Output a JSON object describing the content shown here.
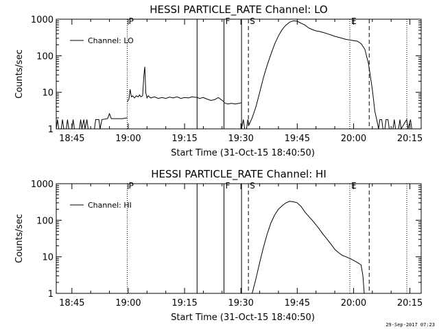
{
  "footer": {
    "timestamp": "29-Sep-2017 07:23"
  },
  "chart_data": [
    {
      "type": "line",
      "title": "HESSI PARTICLE_RATE Channel: LO",
      "xlabel": "Start Time (31-Oct-15 18:40:50)",
      "ylabel": "Counts/sec",
      "y_scale": "log",
      "ylim": [
        1,
        1000
      ],
      "y_ticks": [
        1,
        10,
        100,
        1000
      ],
      "y_tick_labels": [
        "1",
        "10",
        "100",
        "1000"
      ],
      "xlim": [
        "18:40:50",
        "20:18:00"
      ],
      "x_ticks": [
        "18:45",
        "19:00",
        "19:15",
        "19:30",
        "19:45",
        "20:00",
        "20:15"
      ],
      "legend": {
        "label": "Channel: LO",
        "position": "top-left"
      },
      "markers": [
        {
          "time": "18:59:45",
          "style": "dotted",
          "label": "P"
        },
        {
          "time": "19:18:20",
          "style": "solid",
          "label": ""
        },
        {
          "time": "19:25:30",
          "style": "solid",
          "label": "F"
        },
        {
          "time": "19:30:10",
          "style": "solid",
          "label": ""
        },
        {
          "time": "19:32:00",
          "style": "dashed",
          "label": "S"
        },
        {
          "time": "19:59:00",
          "style": "dotted",
          "label": "E"
        },
        {
          "time": "20:04:10",
          "style": "dashed",
          "label": ""
        },
        {
          "time": "20:14:10",
          "style": "dotted",
          "label": ""
        }
      ],
      "series": [
        {
          "name": "Channel: LO",
          "segments": [
            {
              "points": [
                [
                  "18:40:50",
                  1
                ],
                [
                  "18:41:10",
                  1.8
                ],
                [
                  "18:41:30",
                  1
                ],
                [
                  "18:42:10",
                  1
                ],
                [
                  "18:42:30",
                  1.8
                ],
                [
                  "18:42:50",
                  1
                ],
                [
                  "18:43:30",
                  1
                ],
                [
                  "18:43:50",
                  1.8
                ],
                [
                  "18:44:10",
                  1
                ],
                [
                  "18:45:00",
                  1
                ],
                [
                  "18:45:20",
                  1.8
                ],
                [
                  "18:45:40",
                  1
                ],
                [
                  "18:47:00",
                  1
                ],
                [
                  "18:47:20",
                  1.8
                ],
                [
                  "18:47:40",
                  1
                ],
                [
                  "18:48:10",
                  1.8
                ],
                [
                  "18:48:30",
                  1
                ],
                [
                  "18:49:00",
                  1.8
                ],
                [
                  "18:49:20",
                  1
                ],
                [
                  "18:51:00",
                  1
                ],
                [
                  "18:51:20",
                  1.8
                ],
                [
                  "18:52:10",
                  1.8
                ],
                [
                  "18:52:30",
                  1
                ],
                [
                  "18:53:00",
                  1.8
                ],
                [
                  "18:54:30",
                  1.9
                ],
                [
                  "18:55:00",
                  2.6
                ],
                [
                  "18:55:30",
                  1.9
                ],
                [
                  "18:58:30",
                  1.9
                ],
                [
                  "18:59:45",
                  2.0
                ]
              ]
            },
            {
              "points": [
                [
                  "18:59:45",
                  5.5
                ],
                [
                  "19:00:10",
                  6.5
                ],
                [
                  "19:00:30",
                  12
                ],
                [
                  "19:00:50",
                  7.5
                ],
                [
                  "19:01:10",
                  8
                ],
                [
                  "19:01:40",
                  7
                ],
                [
                  "19:02:10",
                  8
                ],
                [
                  "19:02:40",
                  7.5
                ],
                [
                  "19:03:00",
                  8.5
                ],
                [
                  "19:03:20",
                  7.5
                ],
                [
                  "19:03:50",
                  8
                ],
                [
                  "19:04:10",
                  30
                ],
                [
                  "19:04:25",
                  50
                ],
                [
                  "19:04:40",
                  10
                ],
                [
                  "19:05:00",
                  7
                ],
                [
                  "19:05:20",
                  8
                ],
                [
                  "19:06:00",
                  7
                ],
                [
                  "19:07:00",
                  7.5
                ],
                [
                  "19:08:00",
                  6.8
                ],
                [
                  "19:09:00",
                  7.2
                ],
                [
                  "19:10:00",
                  6.8
                ],
                [
                  "19:11:00",
                  7.4
                ],
                [
                  "19:12:00",
                  7
                ],
                [
                  "19:13:00",
                  7.5
                ],
                [
                  "19:14:00",
                  6.8
                ],
                [
                  "19:15:00",
                  7.2
                ],
                [
                  "19:16:00",
                  7
                ],
                [
                  "19:17:00",
                  7.5
                ],
                [
                  "19:18:20",
                  7.2
                ],
                [
                  "19:19:00",
                  6.8
                ],
                [
                  "19:20:00",
                  7.2
                ],
                [
                  "19:21:00",
                  6.5
                ],
                [
                  "19:22:00",
                  6
                ],
                [
                  "19:23:00",
                  6.3
                ],
                [
                  "19:24:00",
                  7.2
                ],
                [
                  "19:25:30",
                  5.5
                ]
              ]
            },
            {
              "points": [
                [
                  "19:25:30",
                  5.2
                ],
                [
                  "19:26:30",
                  4.8
                ],
                [
                  "19:27:30",
                  5
                ],
                [
                  "19:28:30",
                  4.8
                ],
                [
                  "19:29:30",
                  5
                ],
                [
                  "19:30:10",
                  5.2
                ]
              ]
            },
            {
              "points": [
                [
                  "19:30:10",
                  1
                ],
                [
                  "19:30:40",
                  1.8
                ],
                [
                  "19:31:00",
                  1
                ],
                [
                  "19:31:30",
                  1
                ],
                [
                  "19:31:50",
                  1.8
                ],
                [
                  "19:32:10",
                  1.3
                ],
                [
                  "19:33:00",
                  2
                ],
                [
                  "19:34:00",
                  4
                ],
                [
                  "19:35:00",
                  10
                ],
                [
                  "19:36:00",
                  25
                ],
                [
                  "19:37:00",
                  55
                ],
                [
                  "19:38:00",
                  110
                ],
                [
                  "19:39:00",
                  210
                ],
                [
                  "19:40:00",
                  350
                ],
                [
                  "19:41:00",
                  520
                ],
                [
                  "19:42:00",
                  690
                ],
                [
                  "19:43:00",
                  830
                ],
                [
                  "19:44:00",
                  900
                ],
                [
                  "19:45:00",
                  880
                ],
                [
                  "19:46:00",
                  780
                ],
                [
                  "19:47:00",
                  700
                ],
                [
                  "19:48:00",
                  580
                ],
                [
                  "19:49:00",
                  520
                ],
                [
                  "19:50:00",
                  480
                ],
                [
                  "19:51:00",
                  460
                ],
                [
                  "19:52:00",
                  430
                ],
                [
                  "19:53:00",
                  400
                ],
                [
                  "19:54:00",
                  370
                ],
                [
                  "19:55:00",
                  340
                ],
                [
                  "19:56:00",
                  320
                ],
                [
                  "19:57:00",
                  300
                ],
                [
                  "19:58:00",
                  280
                ],
                [
                  "19:59:00",
                  270
                ],
                [
                  "20:00:00",
                  260
                ],
                [
                  "20:01:00",
                  250
                ],
                [
                  "20:02:00",
                  215
                ],
                [
                  "20:03:00",
                  150
                ],
                [
                  "20:04:00",
                  60
                ],
                [
                  "20:05:00",
                  12
                ],
                [
                  "20:05:40",
                  3
                ],
                [
                  "20:06:10",
                  1.8
                ],
                [
                  "20:06:40",
                  1
                ],
                [
                  "20:07:00",
                  1.8
                ],
                [
                  "20:07:30",
                  1.8
                ],
                [
                  "20:07:50",
                  1
                ],
                [
                  "20:08:20",
                  1
                ],
                [
                  "20:08:40",
                  1.8
                ],
                [
                  "20:09:10",
                  1.8
                ],
                [
                  "20:09:30",
                  1
                ],
                [
                  "20:10:30",
                  1
                ],
                [
                  "20:10:50",
                  1.8
                ],
                [
                  "20:11:10",
                  1
                ],
                [
                  "20:12:00",
                  1
                ],
                [
                  "20:12:20",
                  1.8
                ],
                [
                  "20:12:40",
                  1
                ],
                [
                  "20:14:10",
                  1.8
                ],
                [
                  "20:14:30",
                  1
                ],
                [
                  "20:15:10",
                  1.8
                ],
                [
                  "20:15:30",
                  1
                ]
              ]
            }
          ]
        }
      ]
    },
    {
      "type": "line",
      "title": "HESSI PARTICLE_RATE Channel: HI",
      "xlabel": "Start Time (31-Oct-15 18:40:50)",
      "ylabel": "Counts/sec",
      "y_scale": "log",
      "ylim": [
        1,
        1000
      ],
      "y_ticks": [
        1,
        10,
        100,
        1000
      ],
      "y_tick_labels": [
        "1",
        "10",
        "100",
        "1000"
      ],
      "xlim": [
        "18:40:50",
        "20:18:00"
      ],
      "x_ticks": [
        "18:45",
        "19:00",
        "19:15",
        "19:30",
        "19:45",
        "20:00",
        "20:15"
      ],
      "legend": {
        "label": "Channel: HI",
        "position": "top-left"
      },
      "markers": [
        {
          "time": "18:59:45",
          "style": "dotted",
          "label": "P"
        },
        {
          "time": "19:18:20",
          "style": "solid",
          "label": ""
        },
        {
          "time": "19:25:30",
          "style": "solid",
          "label": "F"
        },
        {
          "time": "19:30:10",
          "style": "solid",
          "label": ""
        },
        {
          "time": "19:32:00",
          "style": "dashed",
          "label": "S"
        },
        {
          "time": "19:59:00",
          "style": "dotted",
          "label": "E"
        },
        {
          "time": "20:04:10",
          "style": "dashed",
          "label": ""
        },
        {
          "time": "20:14:10",
          "style": "dotted",
          "label": ""
        }
      ],
      "series": [
        {
          "name": "Channel: HI",
          "segments": [
            {
              "points": [
                [
                  "19:33:00",
                  1
                ],
                [
                  "19:34:00",
                  2.5
                ],
                [
                  "19:35:00",
                  7
                ],
                [
                  "19:36:00",
                  18
                ],
                [
                  "19:37:00",
                  42
                ],
                [
                  "19:38:00",
                  85
                ],
                [
                  "19:39:00",
                  140
                ],
                [
                  "19:40:00",
                  200
                ],
                [
                  "19:41:00",
                  250
                ],
                [
                  "19:42:00",
                  300
                ],
                [
                  "19:43:00",
                  330
                ],
                [
                  "19:44:00",
                  320
                ],
                [
                  "19:45:00",
                  300
                ],
                [
                  "19:46:00",
                  240
                ],
                [
                  "19:47:00",
                  170
                ],
                [
                  "19:48:00",
                  130
                ],
                [
                  "19:49:00",
                  100
                ],
                [
                  "19:50:00",
                  75
                ],
                [
                  "19:51:00",
                  55
                ],
                [
                  "19:52:00",
                  40
                ],
                [
                  "19:53:00",
                  30
                ],
                [
                  "19:54:00",
                  22
                ],
                [
                  "19:55:00",
                  16
                ],
                [
                  "19:56:00",
                  13
                ],
                [
                  "19:57:00",
                  11
                ],
                [
                  "19:58:00",
                  10
                ],
                [
                  "19:59:00",
                  9
                ],
                [
                  "20:00:00",
                  8
                ],
                [
                  "20:01:00",
                  7
                ],
                [
                  "20:02:00",
                  6
                ],
                [
                  "20:02:30",
                  3
                ],
                [
                  "20:02:50",
                  1
                ]
              ]
            }
          ]
        }
      ]
    }
  ]
}
